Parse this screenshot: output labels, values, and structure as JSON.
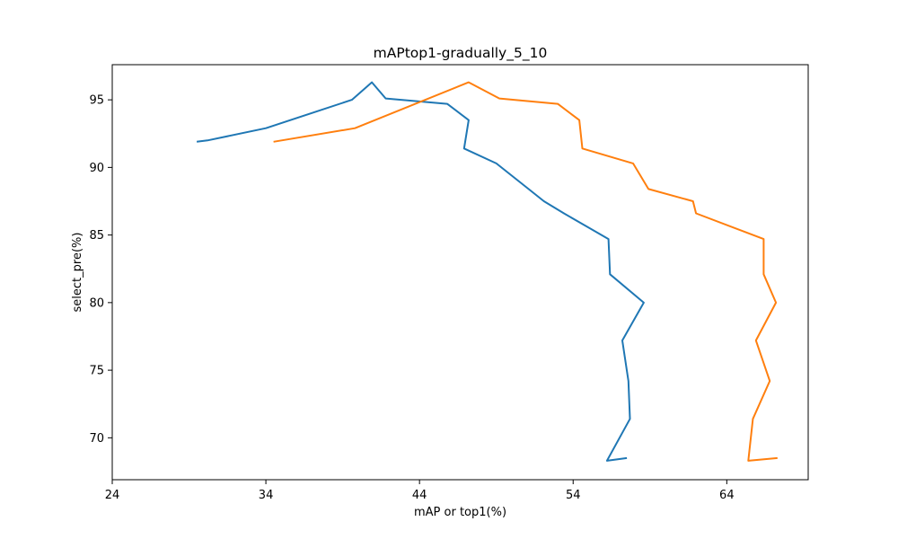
{
  "chart_data": {
    "type": "line",
    "title": "mAPtop1-gradually_5_10",
    "xlabel": "mAP or top1(%)",
    "ylabel": "select_pre(%)",
    "xlim": [
      24,
      69.3
    ],
    "ylim": [
      66.9,
      97.6
    ],
    "xticks": [
      24,
      34,
      44,
      54,
      64
    ],
    "yticks": [
      70,
      75,
      80,
      85,
      90,
      95
    ],
    "grid": false,
    "legend": "none",
    "series": [
      {
        "color": "#1f77b4",
        "points": [
          [
            57.5,
            68.5
          ],
          [
            56.2,
            68.3
          ],
          [
            57.7,
            71.4
          ],
          [
            57.6,
            74.2
          ],
          [
            57.2,
            77.2
          ],
          [
            58.6,
            80.0
          ],
          [
            56.4,
            82.1
          ],
          [
            56.3,
            84.7
          ],
          [
            53.4,
            86.6
          ],
          [
            52.1,
            87.5
          ],
          [
            51.1,
            88.4
          ],
          [
            49.0,
            90.3
          ],
          [
            46.9,
            91.4
          ],
          [
            47.2,
            93.5
          ],
          [
            45.8,
            94.7
          ],
          [
            41.8,
            95.1
          ],
          [
            40.9,
            96.3
          ],
          [
            39.6,
            95.0
          ],
          [
            34.0,
            92.9
          ],
          [
            30.2,
            92.0
          ],
          [
            29.5,
            91.9
          ]
        ]
      },
      {
        "color": "#ff7f0e",
        "points": [
          [
            67.3,
            68.5
          ],
          [
            65.4,
            68.3
          ],
          [
            65.7,
            71.4
          ],
          [
            66.8,
            74.2
          ],
          [
            65.9,
            77.2
          ],
          [
            67.2,
            80.0
          ],
          [
            66.4,
            82.1
          ],
          [
            66.4,
            84.7
          ],
          [
            62.0,
            86.6
          ],
          [
            61.8,
            87.5
          ],
          [
            58.9,
            88.4
          ],
          [
            57.9,
            90.3
          ],
          [
            54.6,
            91.4
          ],
          [
            54.4,
            93.5
          ],
          [
            53.0,
            94.7
          ],
          [
            49.2,
            95.1
          ],
          [
            47.2,
            96.3
          ],
          [
            39.8,
            92.9
          ],
          [
            34.5,
            91.9
          ]
        ]
      }
    ]
  }
}
